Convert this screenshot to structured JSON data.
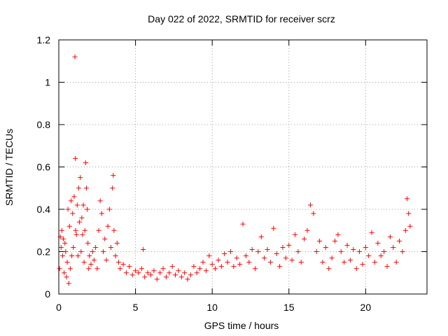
{
  "chart_data": {
    "type": "scatter",
    "title": "Day 022 of 2022, SRMTID for receiver scrz",
    "xlabel": "GPS time / hours",
    "ylabel": "SRMTID / TECUs",
    "xlim": [
      0,
      24
    ],
    "ylim": [
      0,
      1.2
    ],
    "grid": true,
    "marker": "+",
    "series_color": "#ff0000",
    "x_ticks": [
      {
        "value": 0,
        "label": "0"
      },
      {
        "value": 5,
        "label": "5"
      },
      {
        "value": 10,
        "label": "10"
      },
      {
        "value": 15,
        "label": "15"
      },
      {
        "value": 20,
        "label": "20"
      }
    ],
    "y_ticks": [
      {
        "value": 0,
        "label": "0"
      },
      {
        "value": 0.2,
        "label": "0.2"
      },
      {
        "value": 0.4,
        "label": "0.4"
      },
      {
        "value": 0.6,
        "label": "0.6"
      },
      {
        "value": 0.8,
        "label": "0.8"
      },
      {
        "value": 1.0,
        "label": "1"
      },
      {
        "value": 1.2,
        "label": "1.2"
      }
    ],
    "series": [
      {
        "name": "SRMTID",
        "points": [
          [
            0.05,
            0.12
          ],
          [
            0.1,
            0.27
          ],
          [
            0.15,
            0.22
          ],
          [
            0.2,
            0.3
          ],
          [
            0.25,
            0.18
          ],
          [
            0.3,
            0.26
          ],
          [
            0.35,
            0.1
          ],
          [
            0.4,
            0.24
          ],
          [
            0.45,
            0.2
          ],
          [
            0.5,
            0.08
          ],
          [
            0.55,
            0.15
          ],
          [
            0.6,
            0.4
          ],
          [
            0.65,
            0.05
          ],
          [
            0.7,
            0.32
          ],
          [
            0.75,
            0.12
          ],
          [
            0.8,
            0.44
          ],
          [
            0.85,
            0.18
          ],
          [
            0.9,
            0.38
          ],
          [
            0.95,
            0.22
          ],
          [
            1.0,
            0.46
          ],
          [
            1.05,
            1.12
          ],
          [
            1.08,
            0.64
          ],
          [
            1.1,
            0.3
          ],
          [
            1.15,
            0.28
          ],
          [
            1.2,
            0.42
          ],
          [
            1.25,
            0.18
          ],
          [
            1.3,
            0.5
          ],
          [
            1.35,
            0.34
          ],
          [
            1.4,
            0.55
          ],
          [
            1.45,
            0.2
          ],
          [
            1.5,
            0.36
          ],
          [
            1.55,
            0.28
          ],
          [
            1.6,
            0.42
          ],
          [
            1.65,
            0.15
          ],
          [
            1.7,
            0.3
          ],
          [
            1.75,
            0.62
          ],
          [
            1.8,
            0.5
          ],
          [
            1.85,
            0.4
          ],
          [
            1.9,
            0.24
          ],
          [
            1.95,
            0.12
          ],
          [
            2.0,
            0.18
          ],
          [
            2.1,
            0.14
          ],
          [
            2.2,
            0.2
          ],
          [
            2.3,
            0.16
          ],
          [
            2.4,
            0.22
          ],
          [
            2.5,
            0.12
          ],
          [
            2.6,
            0.3
          ],
          [
            2.7,
            0.44
          ],
          [
            2.8,
            0.38
          ],
          [
            2.9,
            0.2
          ],
          [
            3.0,
            0.26
          ],
          [
            3.1,
            0.16
          ],
          [
            3.2,
            0.32
          ],
          [
            3.3,
            0.4
          ],
          [
            3.4,
            0.22
          ],
          [
            3.5,
            0.5
          ],
          [
            3.55,
            0.56
          ],
          [
            3.6,
            0.3
          ],
          [
            3.7,
            0.18
          ],
          [
            3.8,
            0.24
          ],
          [
            3.9,
            0.15
          ],
          [
            4.0,
            0.12
          ],
          [
            4.2,
            0.14
          ],
          [
            4.4,
            0.1
          ],
          [
            4.6,
            0.13
          ],
          [
            4.8,
            0.09
          ],
          [
            5.0,
            0.11
          ],
          [
            5.2,
            0.1
          ],
          [
            5.4,
            0.12
          ],
          [
            5.5,
            0.21
          ],
          [
            5.6,
            0.08
          ],
          [
            5.8,
            0.1
          ],
          [
            6.0,
            0.09
          ],
          [
            6.2,
            0.11
          ],
          [
            6.4,
            0.07
          ],
          [
            6.6,
            0.1
          ],
          [
            6.8,
            0.12
          ],
          [
            7.0,
            0.08
          ],
          [
            7.2,
            0.1
          ],
          [
            7.4,
            0.13
          ],
          [
            7.6,
            0.09
          ],
          [
            7.8,
            0.11
          ],
          [
            8.0,
            0.08
          ],
          [
            8.2,
            0.1
          ],
          [
            8.4,
            0.07
          ],
          [
            8.6,
            0.09
          ],
          [
            8.8,
            0.13
          ],
          [
            9.0,
            0.1
          ],
          [
            9.2,
            0.12
          ],
          [
            9.4,
            0.15
          ],
          [
            9.6,
            0.11
          ],
          [
            9.8,
            0.18
          ],
          [
            10.0,
            0.14
          ],
          [
            10.2,
            0.12
          ],
          [
            10.4,
            0.16
          ],
          [
            10.6,
            0.13
          ],
          [
            10.8,
            0.19
          ],
          [
            11.0,
            0.15
          ],
          [
            11.2,
            0.2
          ],
          [
            11.4,
            0.13
          ],
          [
            11.6,
            0.17
          ],
          [
            11.8,
            0.14
          ],
          [
            12.0,
            0.33
          ],
          [
            12.2,
            0.18
          ],
          [
            12.4,
            0.15
          ],
          [
            12.6,
            0.21
          ],
          [
            12.8,
            0.12
          ],
          [
            13.0,
            0.2
          ],
          [
            13.2,
            0.27
          ],
          [
            13.4,
            0.17
          ],
          [
            13.6,
            0.21
          ],
          [
            13.8,
            0.15
          ],
          [
            14.0,
            0.31
          ],
          [
            14.2,
            0.19
          ],
          [
            14.4,
            0.13
          ],
          [
            14.6,
            0.22
          ],
          [
            14.8,
            0.17
          ],
          [
            15.0,
            0.23
          ],
          [
            15.2,
            0.16
          ],
          [
            15.4,
            0.28
          ],
          [
            15.6,
            0.2
          ],
          [
            15.8,
            0.15
          ],
          [
            16.0,
            0.26
          ],
          [
            16.2,
            0.3
          ],
          [
            16.4,
            0.42
          ],
          [
            16.6,
            0.38
          ],
          [
            16.8,
            0.2
          ],
          [
            17.0,
            0.25
          ],
          [
            17.2,
            0.15
          ],
          [
            17.4,
            0.22
          ],
          [
            17.6,
            0.12
          ],
          [
            17.8,
            0.17
          ],
          [
            18.0,
            0.25
          ],
          [
            18.2,
            0.28
          ],
          [
            18.4,
            0.2
          ],
          [
            18.6,
            0.15
          ],
          [
            18.8,
            0.23
          ],
          [
            19.0,
            0.16
          ],
          [
            19.2,
            0.21
          ],
          [
            19.4,
            0.12
          ],
          [
            19.6,
            0.2
          ],
          [
            19.8,
            0.14
          ],
          [
            20.0,
            0.22
          ],
          [
            20.2,
            0.18
          ],
          [
            20.4,
            0.29
          ],
          [
            20.6,
            0.15
          ],
          [
            20.8,
            0.24
          ],
          [
            21.0,
            0.18
          ],
          [
            21.2,
            0.2
          ],
          [
            21.4,
            0.13
          ],
          [
            21.6,
            0.27
          ],
          [
            21.8,
            0.22
          ],
          [
            22.0,
            0.15
          ],
          [
            22.2,
            0.25
          ],
          [
            22.4,
            0.2
          ],
          [
            22.6,
            0.3
          ],
          [
            22.7,
            0.45
          ],
          [
            22.8,
            0.38
          ],
          [
            22.9,
            0.32
          ]
        ]
      }
    ]
  }
}
